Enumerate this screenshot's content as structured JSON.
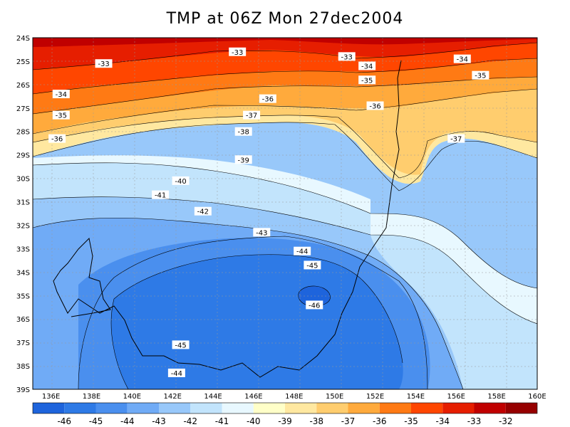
{
  "title": "TMP at 06Z Mon 27dec2004",
  "map": {
    "lat_labels": [
      "24S",
      "25S",
      "26S",
      "27S",
      "28S",
      "29S",
      "30S",
      "31S",
      "32S",
      "33S",
      "34S",
      "35S",
      "36S",
      "37S",
      "38S",
      "39S"
    ],
    "lon_labels": [
      "136E",
      "138E",
      "140E",
      "142E",
      "144E",
      "146E",
      "148E",
      "150E",
      "152E",
      "154E",
      "156E",
      "158E",
      "160E"
    ]
  },
  "contour_labels": [
    {
      "text": "-33",
      "lon": 145.2,
      "lat": -24.6
    },
    {
      "text": "-33",
      "lon": 150.6,
      "lat": -24.8
    },
    {
      "text": "-33",
      "lon": 138.6,
      "lat": -25.1
    },
    {
      "text": "-34",
      "lon": 151.6,
      "lat": -25.2
    },
    {
      "text": "-34",
      "lon": 156.3,
      "lat": -24.9
    },
    {
      "text": "-35",
      "lon": 151.6,
      "lat": -25.8
    },
    {
      "text": "-35",
      "lon": 157.2,
      "lat": -25.6
    },
    {
      "text": "-34",
      "lon": 136.5,
      "lat": -26.4
    },
    {
      "text": "-36",
      "lon": 146.7,
      "lat": -26.6
    },
    {
      "text": "-36",
      "lon": 152.0,
      "lat": -26.9
    },
    {
      "text": "-35",
      "lon": 136.5,
      "lat": -27.3
    },
    {
      "text": "-37",
      "lon": 145.9,
      "lat": -27.3
    },
    {
      "text": "-36",
      "lon": 136.3,
      "lat": -28.3
    },
    {
      "text": "-38",
      "lon": 145.5,
      "lat": -28.0
    },
    {
      "text": "-37",
      "lon": 156.0,
      "lat": -28.3
    },
    {
      "text": "-39",
      "lon": 145.5,
      "lat": -29.2
    },
    {
      "text": "-40",
      "lon": 142.4,
      "lat": -30.1
    },
    {
      "text": "-41",
      "lon": 141.4,
      "lat": -30.7
    },
    {
      "text": "-42",
      "lon": 143.5,
      "lat": -31.4
    },
    {
      "text": "-43",
      "lon": 146.4,
      "lat": -32.3
    },
    {
      "text": "-44",
      "lon": 148.4,
      "lat": -33.1
    },
    {
      "text": "-45",
      "lon": 148.9,
      "lat": -33.7
    },
    {
      "text": "-46",
      "lon": 149.0,
      "lat": -35.4
    },
    {
      "text": "-45",
      "lon": 142.4,
      "lat": -37.1
    },
    {
      "text": "-44",
      "lon": 142.2,
      "lat": -38.3
    }
  ],
  "legend": {
    "colors": [
      "#1e64dc",
      "#2e7ae6",
      "#4a8fee",
      "#70abf6",
      "#98c8fa",
      "#c2e4fc",
      "#e8f8ff",
      "#ffffc8",
      "#ffe8a0",
      "#ffcd6e",
      "#ffaa3c",
      "#ff7a14",
      "#ff4600",
      "#e61e00",
      "#c00000",
      "#960000"
    ],
    "labels": [
      "-46",
      "-45",
      "-44",
      "-43",
      "-42",
      "-41",
      "-40",
      "-39",
      "-38",
      "-37",
      "-36",
      "-35",
      "-34",
      "-33",
      "-32"
    ]
  }
}
